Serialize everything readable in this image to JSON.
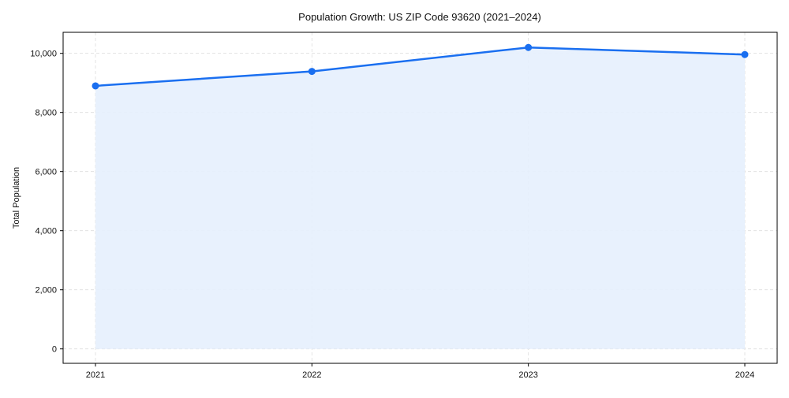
{
  "chart_data": {
    "type": "area",
    "title": "Population Growth: US ZIP Code 93620 (2021–2024)",
    "xlabel": "",
    "ylabel": "Total Population",
    "x": [
      "2021",
      "2022",
      "2023",
      "2024"
    ],
    "series": [
      {
        "name": "Total Population",
        "values": [
          8900,
          9390,
          10200,
          9960
        ],
        "color": "#1a6ff0",
        "fill": "#e5effd"
      }
    ],
    "ylim": [
      -500,
      10700
    ],
    "yticks": [
      0,
      2000,
      4000,
      6000,
      8000,
      10000
    ],
    "ytick_labels": [
      "0",
      "2,000",
      "4,000",
      "6,000",
      "8,000",
      "10,000"
    ],
    "grid": true,
    "legend": "none"
  }
}
